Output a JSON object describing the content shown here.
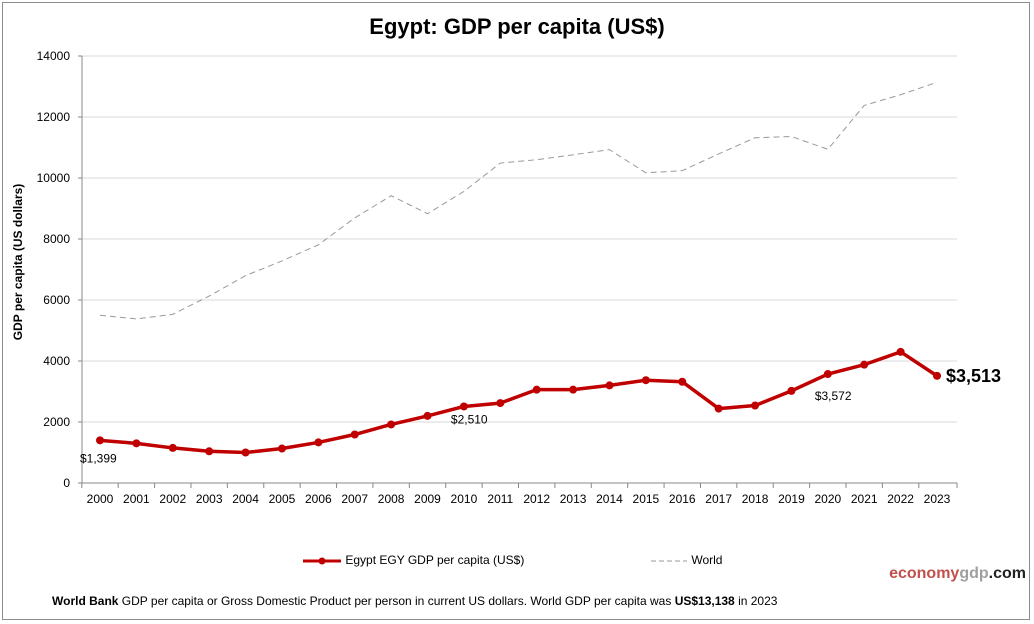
{
  "chart_data": {
    "type": "line",
    "title": "Egypt: GDP per capita (US$)",
    "ylabel": "GDP per capita (US dollars)",
    "xlabel": "",
    "ylim": [
      0,
      14000
    ],
    "yticks": [
      "0",
      "2000",
      "4000",
      "6000",
      "8000",
      "10000",
      "12000",
      "14000"
    ],
    "grid": true,
    "legend": "bottom",
    "categories": [
      "2000",
      "2001",
      "2002",
      "2003",
      "2004",
      "2005",
      "2006",
      "2007",
      "2008",
      "2009",
      "2010",
      "2011",
      "2012",
      "2013",
      "2014",
      "2015",
      "2016",
      "2017",
      "2018",
      "2019",
      "2020",
      "2021",
      "2022",
      "2023"
    ],
    "series": [
      {
        "name": "Egypt EGY GDP per capita (US$)",
        "color": "#c00000",
        "style": "solid-markers",
        "values": [
          1399,
          1300,
          1150,
          1040,
          1000,
          1130,
          1330,
          1590,
          1920,
          2200,
          2510,
          2620,
          3060,
          3060,
          3200,
          3370,
          3320,
          2440,
          2540,
          3020,
          3572,
          3880,
          4300,
          3513
        ]
      },
      {
        "name": "World",
        "color": "#999999",
        "style": "dashed",
        "values": [
          5500,
          5380,
          5530,
          6130,
          6800,
          7280,
          7810,
          8690,
          9420,
          8830,
          9560,
          10490,
          10600,
          10760,
          10930,
          10170,
          10240,
          10790,
          11320,
          11360,
          10940,
          12380,
          12730,
          13138
        ]
      }
    ],
    "annotations": [
      {
        "year": "2000",
        "text": "$1,399"
      },
      {
        "year": "2010",
        "text": "$2,510"
      },
      {
        "year": "2020",
        "text": "$3,572"
      },
      {
        "year": "2023",
        "text": "$3,513"
      }
    ]
  },
  "brand": {
    "part1": "economy",
    "part2": "gdp",
    "part3": ".com"
  },
  "footer": {
    "bold1": "World Bank",
    "text1": " GDP per capita or Gross Domestic Product per person  in current US dollars.   World GDP per capita was ",
    "bold2": "US$13,138",
    "text2": "  in 2023"
  }
}
